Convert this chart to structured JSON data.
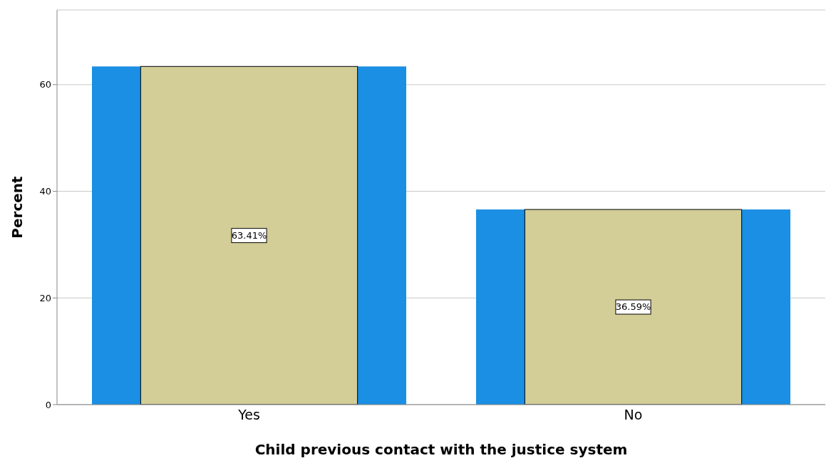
{
  "chart_data": {
    "type": "bar",
    "xlabel": "Child previous contact with the justice system",
    "ylabel": "Percent",
    "categories": [
      "Yes",
      "No"
    ],
    "series": [
      {
        "color": "#1a8fe3",
        "values": [
          63.41,
          36.59
        ]
      },
      {
        "color": "#d3cd97",
        "values": [
          63.41,
          36.59
        ],
        "value_labels": [
          "63.41%",
          "36.59%"
        ]
      }
    ],
    "ylim": [
      0,
      74
    ],
    "yticks": [
      0,
      20,
      40,
      60
    ],
    "grid": "y",
    "legend": false
  }
}
